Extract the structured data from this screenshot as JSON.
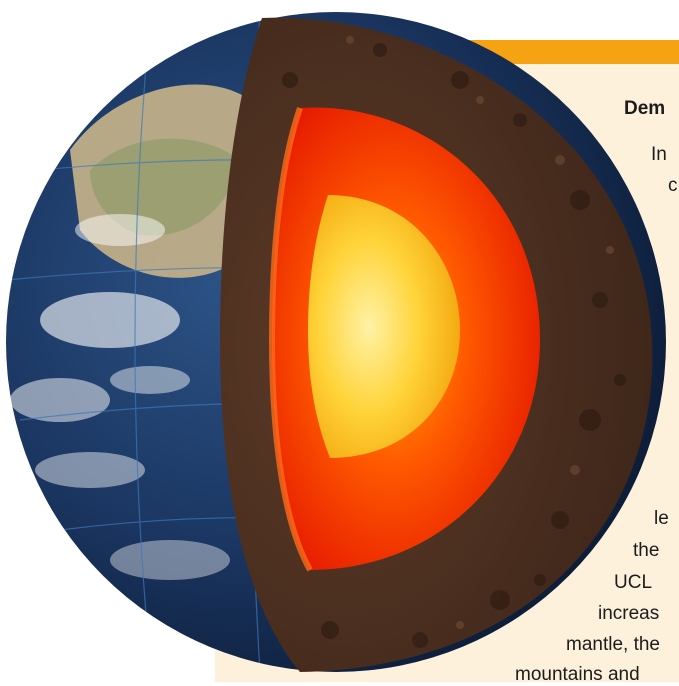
{
  "article": {
    "heading": "Dem",
    "lines": [
      "In",
      "c",
      "le",
      "the",
      "UCL",
      "increas",
      "mantle, the",
      "mountains and"
    ]
  },
  "colors": {
    "accent_bar": "#f5a313",
    "card_bg": "#fdf1dc",
    "crust": "#4a2e20",
    "mantle": "#ff2a00",
    "core": "#ffd23c",
    "ocean": "#1d3a63"
  },
  "illustration": {
    "name": "earth-layers-cutaway",
    "layers": [
      "crust",
      "mantle",
      "outer core",
      "inner core"
    ]
  }
}
